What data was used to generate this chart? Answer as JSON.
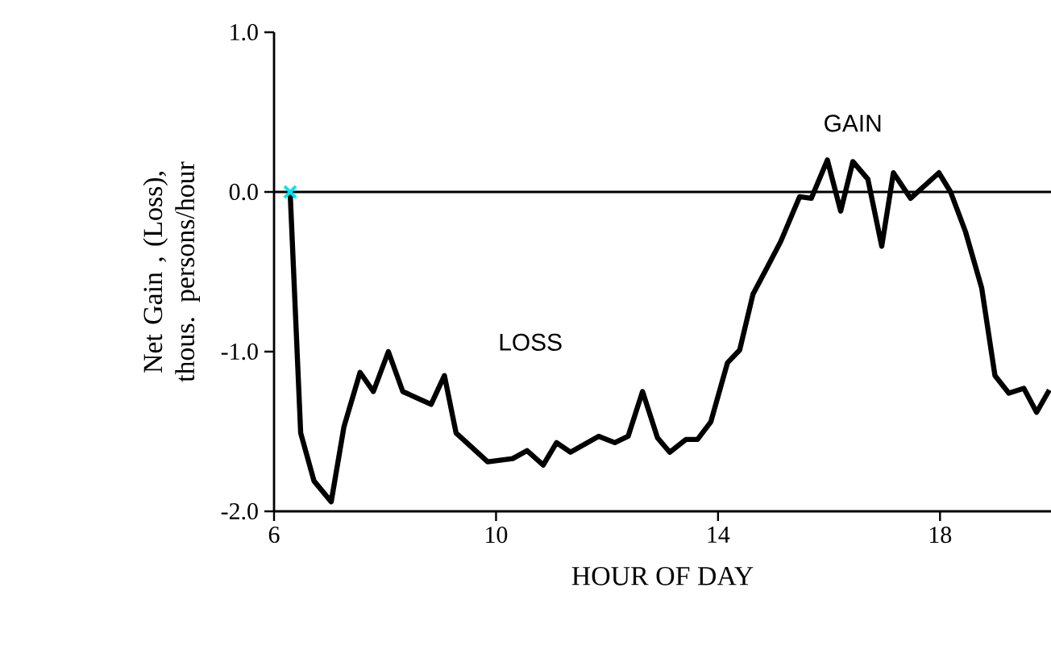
{
  "chart_data": {
    "type": "line",
    "xlabel": "HOUR OF DAY",
    "ylabel": "Net Gain , (Loss), thous. persons/hour",
    "xlim": [
      6,
      20
    ],
    "ylim": [
      -2,
      1
    ],
    "xticks": [
      6,
      10,
      14,
      18
    ],
    "yticks": [
      {
        "value": -2,
        "label": "-2.0"
      },
      {
        "value": -1,
        "label": "-1.0"
      },
      {
        "value": 0,
        "label": "0.0"
      },
      {
        "value": 1,
        "label": "1.0"
      }
    ],
    "grid": false,
    "marker": "none",
    "line_style": "solid",
    "ref_lines": [
      {
        "axis": "y",
        "value": 0,
        "color": "#000000"
      }
    ],
    "annotations": [
      "LOSS",
      "GAIN"
    ],
    "series": [
      {
        "color": "#000000",
        "x": [
          6.29,
          6.48,
          6.72,
          7.03,
          7.26,
          7.55,
          7.79,
          8.06,
          8.32,
          8.83,
          9.07,
          9.28,
          9.85,
          10.3,
          10.56,
          10.85,
          11.09,
          11.34,
          11.85,
          12.14,
          12.38,
          12.64,
          12.91,
          13.13,
          13.42,
          13.63,
          13.87,
          14.17,
          14.39,
          14.63,
          14.89,
          15.13,
          15.47,
          15.68,
          15.97,
          16.21,
          16.43,
          16.7,
          16.95,
          17.16,
          17.47,
          17.98,
          18.19,
          18.46,
          18.75,
          18.99,
          19.24,
          19.51,
          19.74,
          19.97
        ],
        "values": [
          0.0,
          -1.51,
          -1.81,
          -1.94,
          -1.47,
          -1.13,
          -1.25,
          -1.0,
          -1.25,
          -1.33,
          -1.15,
          -1.51,
          -1.69,
          -1.67,
          -1.62,
          -1.71,
          -1.57,
          -1.63,
          -1.53,
          -1.57,
          -1.53,
          -1.25,
          -1.54,
          -1.63,
          -1.55,
          -1.55,
          -1.44,
          -1.07,
          -0.99,
          -0.64,
          -0.47,
          -0.31,
          -0.03,
          -0.04,
          0.2,
          -0.12,
          0.19,
          0.08,
          -0.34,
          0.12,
          -0.04,
          0.12,
          0.0,
          -0.25,
          -0.6,
          -1.15,
          -1.26,
          -1.23,
          -1.38,
          -1.24
        ]
      },
      {
        "type": "scatter",
        "marker": "cross",
        "color": "#00e5ee",
        "x": [
          6.29
        ],
        "values": [
          0.0
        ]
      }
    ]
  }
}
